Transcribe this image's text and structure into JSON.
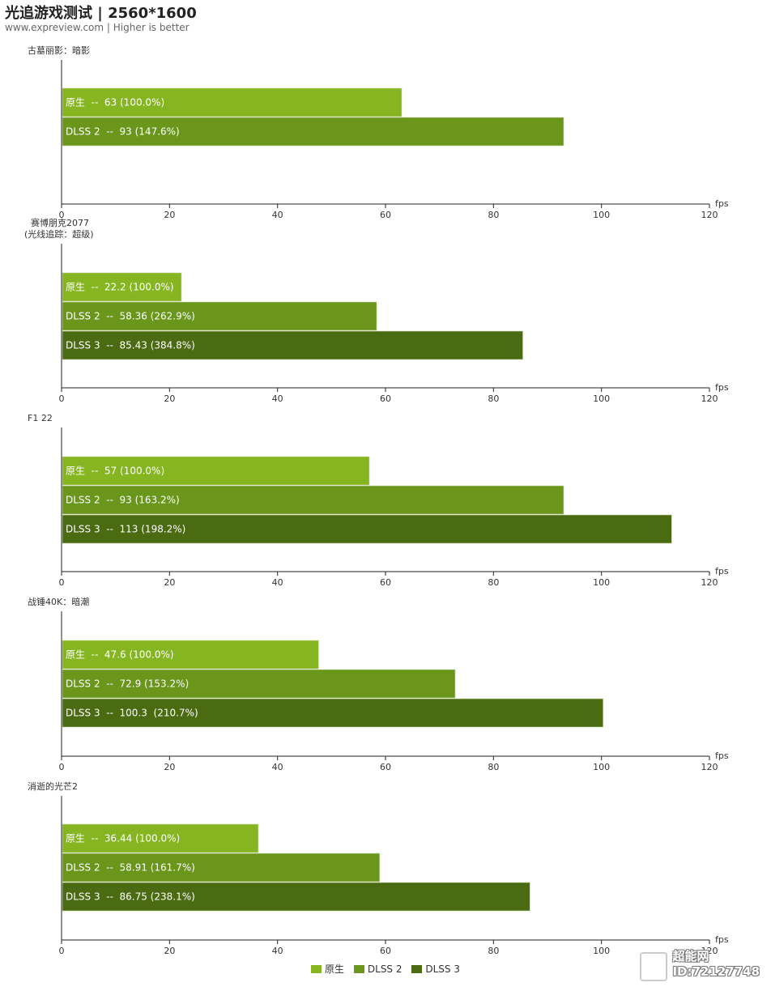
{
  "title": "光追游戏测试 | 2560*1600",
  "subtitle": "www.expreview.com | Higher is better",
  "colors": {
    "原生": "#85b520",
    "DLSS 2": "#6a961c",
    "DLSS 3": "#4b6b12"
  },
  "legend": [
    "原生",
    "DLSS 2",
    "DLSS 3"
  ],
  "watermark": {
    "line1": "超能网",
    "line2": "ID:72127748"
  },
  "chart_data": [
    {
      "type": "bar",
      "orientation": "horizontal",
      "title": [
        "古墓丽影：暗影"
      ],
      "xlabel": "fps",
      "xlim": [
        0,
        120
      ],
      "xticks": [
        0,
        20,
        40,
        60,
        80,
        100,
        120
      ],
      "bars": [
        {
          "series": "原生",
          "value": 63,
          "label": "原生  --  63 (100.0%)"
        },
        {
          "series": "DLSS 2",
          "value": 93,
          "label": "DLSS 2  --  93 (147.6%)"
        }
      ]
    },
    {
      "type": "bar",
      "orientation": "horizontal",
      "title": [
        "赛博朋克2077",
        "(光线追踪：超级)"
      ],
      "xlabel": "fps",
      "xlim": [
        0,
        120
      ],
      "xticks": [
        0,
        20,
        40,
        60,
        80,
        100,
        120
      ],
      "bars": [
        {
          "series": "原生",
          "value": 22.2,
          "label": "原生  --  22.2 (100.0%)"
        },
        {
          "series": "DLSS 2",
          "value": 58.36,
          "label": "DLSS 2  --  58.36 (262.9%)"
        },
        {
          "series": "DLSS 3",
          "value": 85.43,
          "label": "DLSS 3  --  85.43 (384.8%)"
        }
      ]
    },
    {
      "type": "bar",
      "orientation": "horizontal",
      "title": [
        "F1 22"
      ],
      "xlabel": "fps",
      "xlim": [
        0,
        120
      ],
      "xticks": [
        0,
        20,
        40,
        60,
        80,
        100,
        120
      ],
      "bars": [
        {
          "series": "原生",
          "value": 57,
          "label": "原生  --  57 (100.0%)"
        },
        {
          "series": "DLSS 2",
          "value": 93,
          "label": "DLSS 2  --  93 (163.2%)"
        },
        {
          "series": "DLSS 3",
          "value": 113,
          "label": "DLSS 3  --  113 (198.2%)"
        }
      ]
    },
    {
      "type": "bar",
      "orientation": "horizontal",
      "title": [
        "战锤40K：暗潮"
      ],
      "xlabel": "fps",
      "xlim": [
        0,
        120
      ],
      "xticks": [
        0,
        20,
        40,
        60,
        80,
        100,
        120
      ],
      "bars": [
        {
          "series": "原生",
          "value": 47.6,
          "label": "原生  --  47.6 (100.0%)"
        },
        {
          "series": "DLSS 2",
          "value": 72.9,
          "label": "DLSS 2  --  72.9 (153.2%)"
        },
        {
          "series": "DLSS 3",
          "value": 100.3,
          "label": "DLSS 3  --  100.3  (210.7%)"
        }
      ]
    },
    {
      "type": "bar",
      "orientation": "horizontal",
      "title": [
        "消逝的光芒2"
      ],
      "xlabel": "fps",
      "xlim": [
        0,
        120
      ],
      "xticks": [
        0,
        20,
        40,
        60,
        80,
        100,
        120
      ],
      "bars": [
        {
          "series": "原生",
          "value": 36.44,
          "label": "原生  --  36.44 (100.0%)"
        },
        {
          "series": "DLSS 2",
          "value": 58.91,
          "label": "DLSS 2  --  58.91 (161.7%)"
        },
        {
          "series": "DLSS 3",
          "value": 86.75,
          "label": "DLSS 3  --  86.75 (238.1%)"
        }
      ]
    }
  ]
}
